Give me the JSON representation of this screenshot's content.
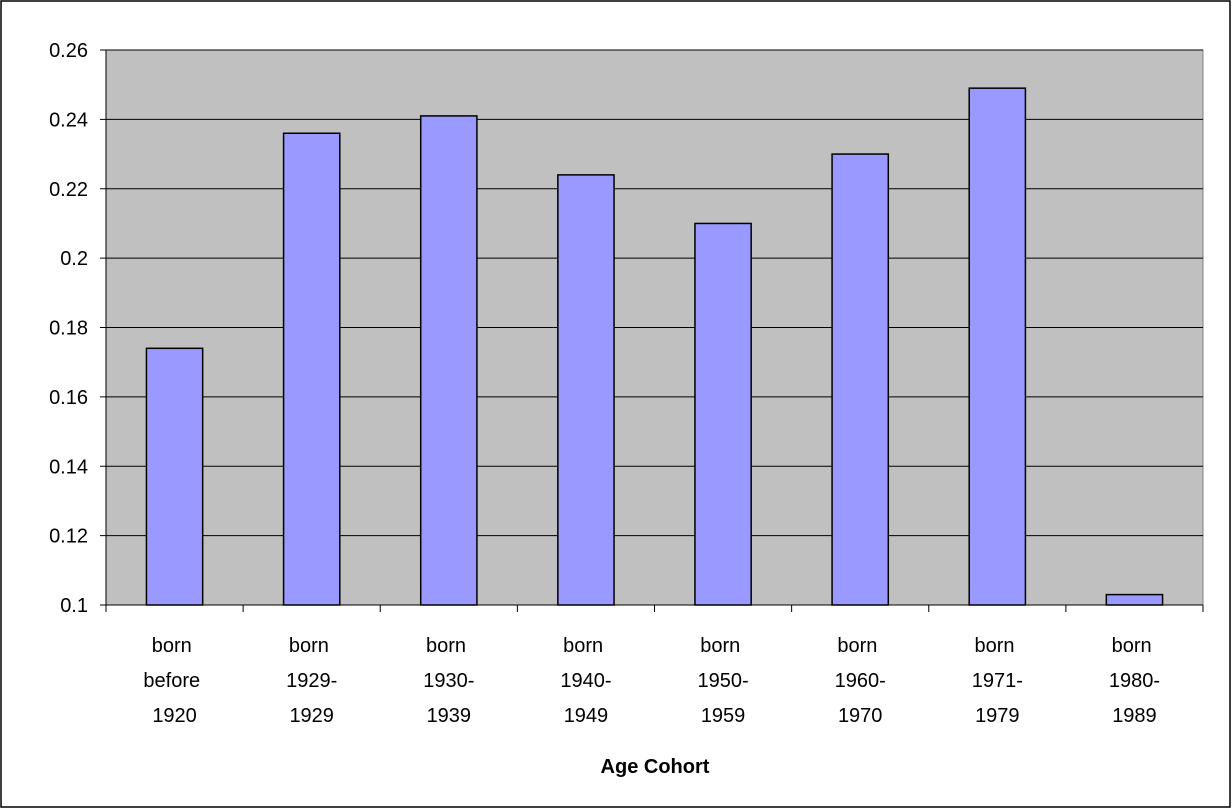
{
  "chart_data": {
    "type": "bar",
    "x_label": "Age Cohort",
    "categories": [
      "born before 1920",
      "born 1929-1929",
      "born 1930-1939",
      "born 1940-1949",
      "born 1950-1959",
      "born 1960-1970",
      "born 1971-1979",
      "born 1980-1989"
    ],
    "values": [
      0.174,
      0.236,
      0.241,
      0.224,
      0.21,
      0.23,
      0.249,
      0.103
    ],
    "color": "#9999ff",
    "plot_background": "#c0c0c0",
    "ylim": [
      0.1,
      0.26
    ],
    "yticks": [
      0.1,
      0.12,
      0.14,
      0.16,
      0.18,
      0.2,
      0.22,
      0.24,
      0.26
    ],
    "grid": true
  }
}
